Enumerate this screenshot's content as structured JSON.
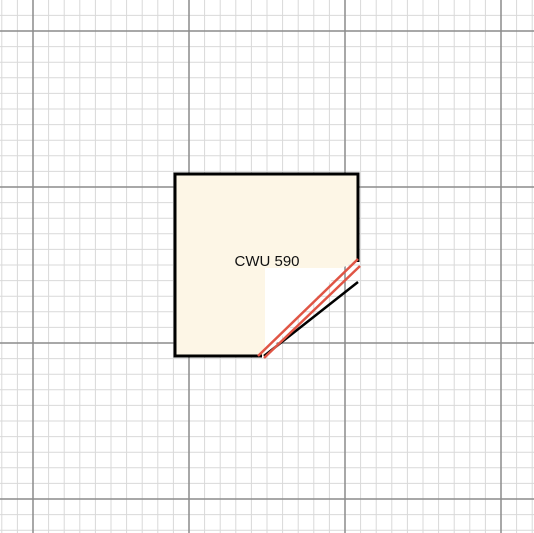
{
  "plan": {
    "room": {
      "label": "CWU 590",
      "fill_color": "#fdf6e6",
      "wall_color": "#000000"
    },
    "door_color": "#e05545",
    "grid": {
      "minor_color": "#d9d9d9",
      "major_color": "#8c8c8c",
      "background": "#ffffff"
    }
  }
}
